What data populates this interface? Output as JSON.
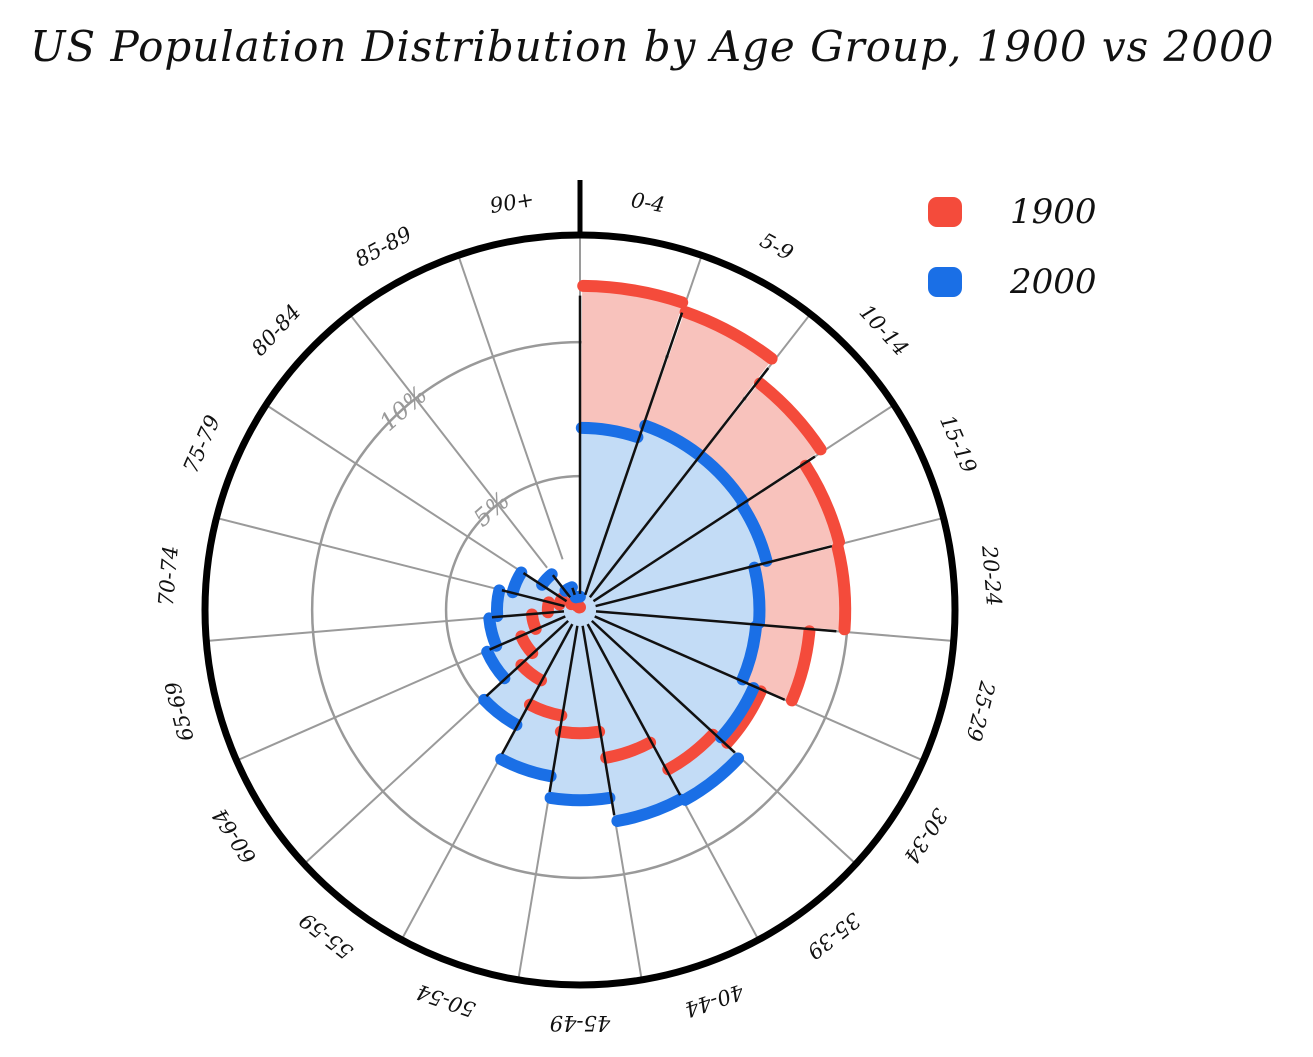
{
  "chart_data": {
    "type": "bar",
    "subtype": "polar",
    "title": "US Population Distribution by Age Group, 1900 vs 2000",
    "categories": [
      "0-4",
      "5-9",
      "10-14",
      "15-19",
      "20-24",
      "25-29",
      "30-34",
      "35-39",
      "40-44",
      "45-49",
      "50-54",
      "55-59",
      "60-64",
      "65-69",
      "70-74",
      "75-79",
      "80-84",
      "85-89",
      "90+"
    ],
    "tick_labels": [
      "0-4",
      "5-9",
      "10-14",
      "15-19",
      "20-24",
      "25-29",
      "30-34",
      "35-39",
      "40-44",
      "45-49",
      "50-54",
      "55-59",
      "60-64",
      "65-69",
      "70-74",
      "75-79",
      "80-84",
      "85-89",
      "90+"
    ],
    "series": [
      {
        "name": "1900",
        "color": "#f44b3b",
        "fill": "#f8c2bc",
        "values": [
          12.1,
          11.8,
          10.8,
          10.0,
          9.9,
          8.6,
          7.4,
          6.8,
          5.6,
          4.6,
          4.0,
          3.0,
          2.4,
          1.8,
          1.2,
          0.8,
          0.4,
          0.2,
          0.1
        ]
      },
      {
        "name": "2000",
        "color": "#1a6fe6",
        "fill": "#c3dcf6",
        "values": [
          6.8,
          7.3,
          7.3,
          7.2,
          6.7,
          6.6,
          7.1,
          8.1,
          8.0,
          7.1,
          6.3,
          4.9,
          3.8,
          3.4,
          3.1,
          2.6,
          1.7,
          0.9,
          0.5
        ]
      }
    ],
    "radial_ticks": [
      5,
      10
    ],
    "radial_tick_labels": [
      "5%",
      "10%"
    ],
    "rmax": 14,
    "grid": true,
    "legend_position": "top-right"
  },
  "legend": {
    "items": [
      {
        "label": "1900",
        "color": "#f44b3b"
      },
      {
        "label": "2000",
        "color": "#1a6fe6"
      }
    ]
  }
}
